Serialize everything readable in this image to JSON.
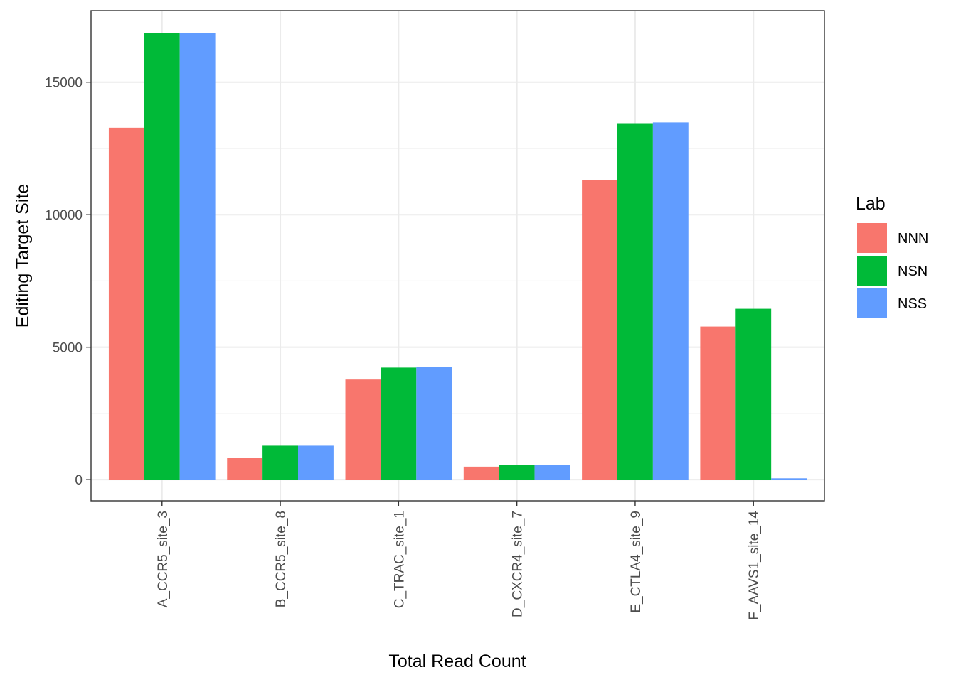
{
  "chart_data": {
    "type": "bar",
    "xlabel": "Total Read Count",
    "ylabel": "Editing Target Site",
    "categories": [
      "A_CCR5_site_3",
      "B_CCR5_site_8",
      "C_TRAC_site_1",
      "D_CXCR4_site_7",
      "E_CTLA4_site_9",
      "F_AAVS1_site_14"
    ],
    "series": [
      {
        "name": "NNN",
        "color": "#F8766D",
        "values": [
          13280,
          830,
          3780,
          490,
          11300,
          5780
        ]
      },
      {
        "name": "NSN",
        "color": "#00BA38",
        "values": [
          16850,
          1280,
          4230,
          560,
          13450,
          6450
        ]
      },
      {
        "name": "NSS",
        "color": "#619CFF",
        "values": [
          16850,
          1280,
          4250,
          560,
          13480,
          50
        ]
      }
    ],
    "ylim": [
      -800,
      17700
    ],
    "yticks": [
      0,
      5000,
      10000,
      15000
    ],
    "y_tick_labels": [
      "0",
      "5000",
      "10000",
      "15000"
    ],
    "grid": true,
    "legend": {
      "title": "Lab",
      "position": "right"
    }
  }
}
